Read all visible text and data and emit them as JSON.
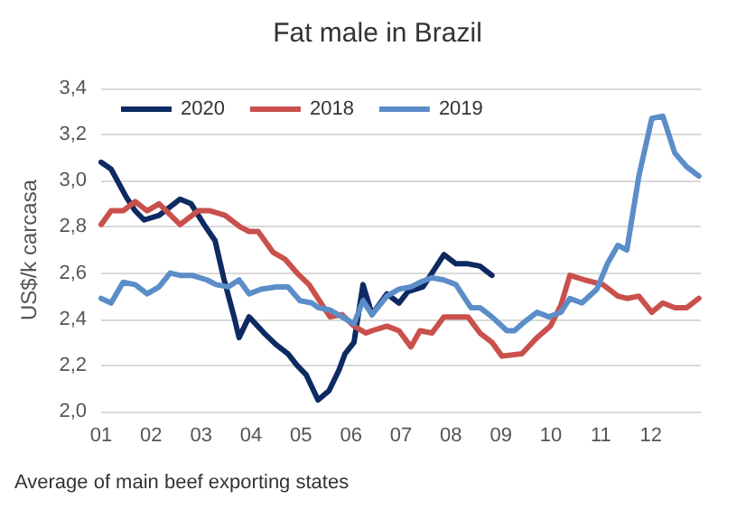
{
  "chart_data": {
    "type": "line",
    "title": "Fat male in Brazil",
    "ylabel": "US$/k carcasa",
    "annotations": [
      "Average of main beef exporting states"
    ],
    "xlim": [
      1,
      13
    ],
    "xticks": [
      {
        "value": 1,
        "label": "01"
      },
      {
        "value": 2,
        "label": "02"
      },
      {
        "value": 3,
        "label": "03"
      },
      {
        "value": 4,
        "label": "04"
      },
      {
        "value": 5,
        "label": "05"
      },
      {
        "value": 6,
        "label": "06"
      },
      {
        "value": 7,
        "label": "07"
      },
      {
        "value": 8,
        "label": "08"
      },
      {
        "value": 9,
        "label": "09"
      },
      {
        "value": 10,
        "label": "10"
      },
      {
        "value": 11,
        "label": "11"
      },
      {
        "value": 12,
        "label": "12"
      }
    ],
    "ylim": [
      2,
      3.4
    ],
    "yticks": [
      {
        "value": 2,
        "label": "2,0"
      },
      {
        "value": 2.2,
        "label": "2,2"
      },
      {
        "value": 2.4,
        "label": "2,4"
      },
      {
        "value": 2.6,
        "label": "2,6"
      },
      {
        "value": 2.8,
        "label": "2,8"
      },
      {
        "value": 3,
        "label": "3,0"
      },
      {
        "value": 3.2,
        "label": "3,2"
      },
      {
        "value": 3.4,
        "label": "3,4"
      }
    ],
    "grid": "y",
    "legend": "top left",
    "marker": "none",
    "line_style": "solid",
    "series": [
      {
        "name": "2020",
        "color": "#0e2a62",
        "x": [
          1,
          1.2,
          1.5,
          1.68,
          1.86,
          2.16,
          2.4,
          2.58,
          2.8,
          3.06,
          3.28,
          3.45,
          3.66,
          3.76,
          3.96,
          4.26,
          4.5,
          4.74,
          4.92,
          5.1,
          5.34,
          5.56,
          5.76,
          5.88,
          6.06,
          6.24,
          6.42,
          6.72,
          6.96,
          7.14,
          7.44,
          7.62,
          7.86,
          8.1,
          8.34,
          8.58,
          8.82
        ],
        "values": [
          3.08,
          3.05,
          2.93,
          2.87,
          2.83,
          2.85,
          2.89,
          2.92,
          2.9,
          2.81,
          2.74,
          2.58,
          2.41,
          2.32,
          2.41,
          2.34,
          2.29,
          2.25,
          2.2,
          2.16,
          2.05,
          2.09,
          2.18,
          2.25,
          2.3,
          2.55,
          2.42,
          2.51,
          2.47,
          2.52,
          2.54,
          2.6,
          2.68,
          2.64,
          2.64,
          2.63,
          2.59
        ]
      },
      {
        "name": "2018",
        "color": "#c9504c",
        "x": [
          1,
          1.2,
          1.44,
          1.68,
          1.92,
          2.16,
          2.58,
          2.94,
          3.18,
          3.48,
          3.78,
          3.96,
          4.14,
          4.44,
          4.68,
          4.92,
          5.16,
          5.4,
          5.58,
          5.82,
          6.06,
          6.3,
          6.42,
          6.72,
          6.96,
          7.2,
          7.38,
          7.62,
          7.86,
          8.34,
          8.58,
          8.82,
          9.02,
          9.42,
          9.72,
          9.99,
          10.2,
          10.38,
          10.68,
          11.04,
          11.34,
          11.52,
          11.76,
          12.02,
          12.24,
          12.48,
          12.72,
          12.96
        ],
        "values": [
          2.81,
          2.87,
          2.87,
          2.91,
          2.87,
          2.9,
          2.81,
          2.87,
          2.87,
          2.85,
          2.8,
          2.78,
          2.78,
          2.69,
          2.66,
          2.6,
          2.55,
          2.47,
          2.41,
          2.42,
          2.37,
          2.34,
          2.35,
          2.37,
          2.35,
          2.28,
          2.35,
          2.34,
          2.41,
          2.41,
          2.34,
          2.3,
          2.24,
          2.25,
          2.32,
          2.37,
          2.46,
          2.59,
          2.57,
          2.55,
          2.5,
          2.49,
          2.5,
          2.43,
          2.47,
          2.45,
          2.45,
          2.49
        ]
      },
      {
        "name": "2019",
        "color": "#5b8dc9",
        "x": [
          1,
          1.2,
          1.44,
          1.68,
          1.92,
          2.16,
          2.38,
          2.58,
          2.82,
          3.12,
          3.3,
          3.54,
          3.76,
          3.96,
          4.2,
          4.5,
          4.74,
          4.98,
          5.22,
          5.34,
          5.58,
          5.82,
          6.06,
          6.24,
          6.42,
          6.72,
          6.96,
          7.2,
          7.38,
          7.62,
          7.86,
          8.1,
          8.4,
          8.58,
          8.82,
          9.12,
          9.27,
          9.48,
          9.72,
          9.96,
          10.2,
          10.38,
          10.62,
          10.92,
          11.13,
          11.34,
          11.52,
          11.76,
          12.02,
          12.24,
          12.48,
          12.72,
          12.96
        ],
        "values": [
          2.49,
          2.47,
          2.56,
          2.55,
          2.51,
          2.54,
          2.6,
          2.59,
          2.59,
          2.57,
          2.55,
          2.54,
          2.57,
          2.51,
          2.53,
          2.54,
          2.54,
          2.48,
          2.47,
          2.45,
          2.44,
          2.41,
          2.38,
          2.48,
          2.42,
          2.5,
          2.53,
          2.54,
          2.56,
          2.58,
          2.57,
          2.55,
          2.45,
          2.45,
          2.41,
          2.35,
          2.35,
          2.39,
          2.43,
          2.41,
          2.43,
          2.49,
          2.47,
          2.53,
          2.64,
          2.72,
          2.7,
          3.02,
          3.27,
          3.28,
          3.12,
          3.06,
          3.02
        ]
      }
    ]
  }
}
